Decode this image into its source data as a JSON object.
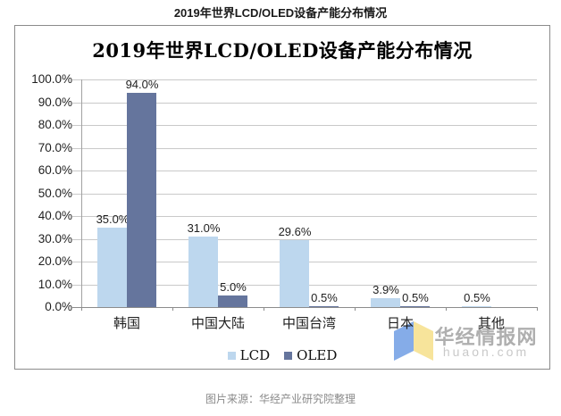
{
  "page": {
    "title": "2019年世界LCD/OLED设备产能分布情况",
    "caption": "图片来源：华经产业研究院整理"
  },
  "chart": {
    "title": "2019年世界LCD/OLED设备产能分布情况",
    "watermark": {
      "name": "华经情报网",
      "url": "huaon.com",
      "logo_blue": "#85ACE8",
      "logo_yellow": "#F7E49B"
    }
  },
  "chart_data": {
    "type": "bar",
    "title": "2019年世界LCD/OLED设备产能分布情况",
    "categories": [
      "韩国",
      "中国大陆",
      "中国台湾",
      "日本",
      "其他"
    ],
    "series": [
      {
        "name": "LCD",
        "color": "#BDD7EE",
        "values": [
          35.0,
          31.0,
          29.6,
          3.9,
          0.5
        ]
      },
      {
        "name": "OLED",
        "color": "#65759D",
        "values": [
          94.0,
          5.0,
          0.5,
          0.5,
          null
        ]
      }
    ],
    "value_labels": [
      [
        "35.0%",
        "31.0%",
        "29.6%",
        "3.9%",
        "0.5%"
      ],
      [
        "94.0%",
        "5.0%",
        "0.5%",
        "0.5%",
        null
      ]
    ],
    "ylim": [
      0,
      100
    ],
    "ytick_labels": [
      "0.0%",
      "10.0%",
      "20.0%",
      "30.0%",
      "40.0%",
      "50.0%",
      "60.0%",
      "70.0%",
      "80.0%",
      "90.0%",
      "100.0%"
    ],
    "grid": true,
    "legend_position": "bottom",
    "colors": {
      "gridline": "#c9c9c9",
      "axis": "#8c8c8c"
    }
  }
}
